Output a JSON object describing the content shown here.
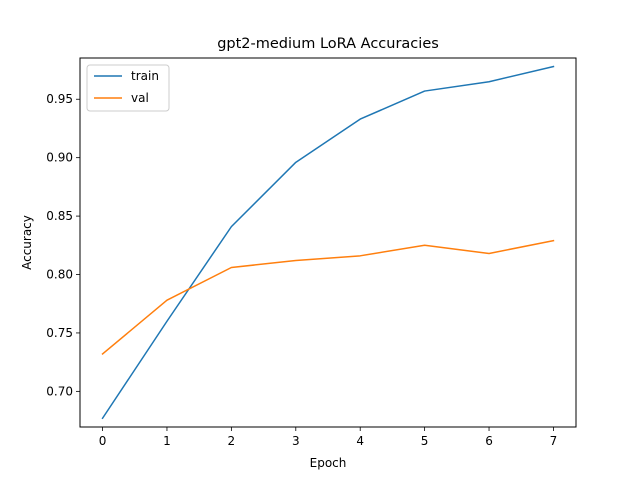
{
  "chart_data": {
    "type": "line",
    "title": "gpt2-medium LoRA  Accuracies",
    "xlabel": "Epoch",
    "ylabel": "Accuracy",
    "x": [
      0,
      1,
      2,
      3,
      4,
      5,
      6,
      7
    ],
    "series": [
      {
        "name": "train",
        "color": "#1f77b4",
        "values": [
          0.677,
          0.76,
          0.841,
          0.896,
          0.933,
          0.957,
          0.965,
          0.978
        ]
      },
      {
        "name": "val",
        "color": "#ff7f0e",
        "values": [
          0.732,
          0.778,
          0.806,
          0.812,
          0.816,
          0.825,
          0.818,
          0.829
        ]
      }
    ],
    "xlim": [
      -0.35,
      7.35
    ],
    "ylim": [
      0.6695,
      0.9853
    ],
    "xticks": [
      "0",
      "1",
      "2",
      "3",
      "4",
      "5",
      "6",
      "7"
    ],
    "yticks": [
      "0.70",
      "0.75",
      "0.80",
      "0.85",
      "0.90",
      "0.95"
    ],
    "grid": false,
    "legend_position": "top-left"
  }
}
